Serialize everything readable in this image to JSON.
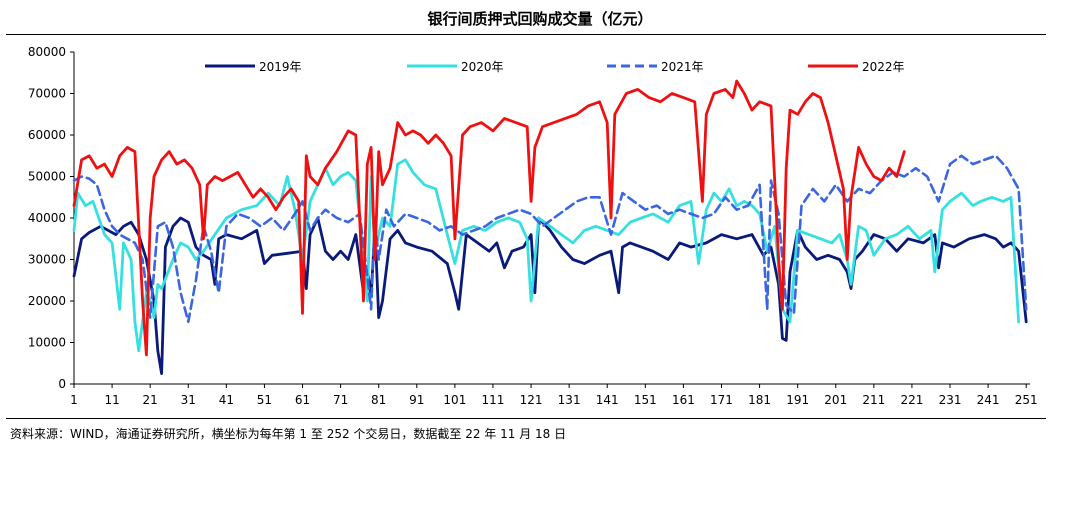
{
  "chart_data": {
    "type": "line",
    "title": "银行间质押式回购成交量（亿元）",
    "source": "资料来源：WIND，海通证券研究所，横坐标为每年第 1 至 252 个交易日，数据截至 22 年 11 月 18 日",
    "xlabel": "",
    "ylabel": "",
    "xlim": [
      1,
      252
    ],
    "ylim": [
      0,
      80000
    ],
    "x_ticks": [
      "1",
      "11",
      "21",
      "31",
      "41",
      "51",
      "61",
      "71",
      "81",
      "91",
      "101",
      "111",
      "121",
      "131",
      "141",
      "151",
      "161",
      "171",
      "181",
      "191",
      "201",
      "211",
      "221",
      "231",
      "241",
      "251"
    ],
    "y_ticks": [
      "0",
      "10000",
      "20000",
      "30000",
      "40000",
      "50000",
      "60000",
      "70000",
      "80000"
    ],
    "legend_position": "top",
    "series": [
      {
        "name": "2019年",
        "color": "#0a1a7a",
        "dash": "solid",
        "x": [
          1,
          3,
          5,
          8,
          12,
          14,
          16,
          18,
          20,
          22,
          23,
          24,
          25,
          27,
          29,
          31,
          33,
          35,
          37,
          38,
          39,
          41,
          45,
          49,
          51,
          53,
          57,
          61,
          62,
          63,
          65,
          67,
          69,
          71,
          73,
          75,
          77,
          78,
          79,
          80,
          81,
          82,
          84,
          86,
          88,
          91,
          95,
          99,
          101,
          102,
          104,
          107,
          110,
          112,
          114,
          116,
          119,
          121,
          122,
          123,
          126,
          129,
          132,
          135,
          139,
          142,
          144,
          145,
          147,
          150,
          153,
          157,
          160,
          163,
          167,
          171,
          175,
          179,
          182,
          184,
          186,
          187,
          188,
          189,
          191,
          193,
          196,
          199,
          202,
          204,
          205,
          206,
          208,
          211,
          214,
          217,
          220,
          224,
          227,
          228,
          229,
          232,
          236,
          240,
          243,
          245,
          247,
          249,
          251
        ],
        "values": [
          26000,
          35000,
          36500,
          38000,
          36000,
          38000,
          39000,
          36000,
          30000,
          20000,
          8000,
          2500,
          33000,
          38000,
          40000,
          39000,
          33000,
          31000,
          30000,
          24000,
          35000,
          36000,
          35000,
          37000,
          29000,
          31000,
          31500,
          32000,
          23000,
          36000,
          40000,
          32000,
          30000,
          32000,
          30000,
          36000,
          22000,
          28000,
          21000,
          38000,
          16000,
          20000,
          35000,
          37000,
          34000,
          33000,
          32000,
          29000,
          22000,
          18000,
          36000,
          34000,
          32000,
          34000,
          28000,
          32000,
          33000,
          36000,
          22000,
          40000,
          37000,
          33000,
          30000,
          29000,
          31000,
          32000,
          22000,
          33000,
          34000,
          33000,
          32000,
          30000,
          34000,
          33000,
          34000,
          36000,
          35000,
          36000,
          31000,
          33000,
          24000,
          11000,
          10500,
          27000,
          37000,
          33000,
          30000,
          31000,
          30000,
          27000,
          23000,
          30000,
          32000,
          36000,
          35000,
          32000,
          35000,
          34000,
          36000,
          28000,
          34000,
          33000,
          35000,
          36000,
          35000,
          33000,
          34000,
          32000,
          15000
        ]
      },
      {
        "name": "2020年",
        "color": "#36e0e0",
        "dash": "solid",
        "x": [
          1,
          2,
          4,
          6,
          9,
          11,
          13,
          14,
          16,
          17,
          18,
          20,
          21,
          22,
          23,
          24,
          27,
          29,
          31,
          33,
          35,
          38,
          41,
          45,
          49,
          52,
          55,
          57,
          59,
          61,
          63,
          65,
          67,
          69,
          71,
          73,
          75,
          77,
          78,
          79,
          80,
          82,
          84,
          86,
          88,
          90,
          93,
          96,
          99,
          101,
          103,
          106,
          109,
          112,
          115,
          118,
          120,
          121,
          123,
          126,
          129,
          132,
          135,
          138,
          141,
          144,
          147,
          150,
          153,
          157,
          160,
          163,
          165,
          167,
          169,
          171,
          173,
          175,
          177,
          179,
          181,
          183,
          185,
          187,
          189,
          191,
          194,
          197,
          200,
          202,
          204,
          205,
          207,
          209,
          211,
          214,
          217,
          220,
          223,
          226,
          227,
          229,
          231,
          234,
          237,
          239,
          242,
          245,
          247,
          249
        ],
        "values": [
          37000,
          46000,
          43000,
          44000,
          36000,
          34000,
          18000,
          34000,
          30000,
          15000,
          8000,
          22000,
          20000,
          16000,
          24000,
          23000,
          30000,
          34000,
          33000,
          30000,
          32000,
          36000,
          40000,
          42000,
          43000,
          46000,
          43000,
          50000,
          42000,
          30000,
          44000,
          48000,
          52000,
          48000,
          50000,
          51000,
          49000,
          31000,
          20000,
          50000,
          32000,
          40000,
          38000,
          53000,
          54000,
          51000,
          48000,
          47000,
          36000,
          29000,
          37000,
          38000,
          37000,
          39000,
          40000,
          39000,
          35000,
          20000,
          40000,
          38000,
          36000,
          34000,
          37000,
          38000,
          37000,
          36000,
          39000,
          40000,
          41000,
          39000,
          43000,
          44000,
          29000,
          42000,
          46000,
          44000,
          47000,
          43000,
          44000,
          43000,
          41000,
          32000,
          38000,
          18000,
          15000,
          37000,
          36000,
          35000,
          34000,
          36000,
          30000,
          24000,
          38000,
          37000,
          31000,
          35000,
          36000,
          38000,
          35000,
          37000,
          27000,
          42000,
          44000,
          46000,
          43000,
          44000,
          45000,
          44000,
          45000,
          15000
        ]
      },
      {
        "name": "2021年",
        "color": "#3a66e0",
        "dash": "dashed",
        "x": [
          1,
          3,
          5,
          7,
          9,
          11,
          13,
          15,
          17,
          19,
          21,
          23,
          25,
          27,
          29,
          31,
          33,
          35,
          37,
          39,
          41,
          44,
          47,
          50,
          53,
          56,
          59,
          61,
          63,
          65,
          67,
          70,
          73,
          76,
          78,
          79,
          80,
          81,
          83,
          85,
          88,
          91,
          94,
          97,
          100,
          103,
          106,
          109,
          112,
          115,
          118,
          121,
          124,
          127,
          130,
          133,
          136,
          139,
          142,
          145,
          148,
          151,
          154,
          157,
          160,
          163,
          166,
          169,
          172,
          175,
          178,
          181,
          183,
          184,
          186,
          188,
          190,
          192,
          195,
          198,
          201,
          204,
          207,
          210,
          213,
          216,
          219,
          222,
          225,
          228,
          231,
          234,
          237,
          240,
          243,
          246,
          249,
          251
        ],
        "values": [
          49000,
          50000,
          49500,
          48000,
          42000,
          38000,
          36000,
          35000,
          34000,
          30000,
          16000,
          38000,
          39000,
          33000,
          22000,
          15000,
          25000,
          38000,
          32000,
          22000,
          38000,
          41000,
          40000,
          38000,
          40000,
          37000,
          41000,
          44000,
          37000,
          40000,
          42000,
          40000,
          39000,
          41000,
          26000,
          18000,
          40000,
          30000,
          42000,
          38000,
          41000,
          40000,
          39000,
          37000,
          38000,
          36000,
          37000,
          38000,
          40000,
          41000,
          42000,
          41000,
          38000,
          40000,
          42000,
          44000,
          45000,
          45000,
          36000,
          46000,
          44000,
          42000,
          43000,
          41000,
          42000,
          41000,
          40000,
          41000,
          45000,
          42000,
          43000,
          48000,
          18000,
          49000,
          41000,
          19000,
          17000,
          43000,
          47000,
          44000,
          48000,
          44000,
          47000,
          46000,
          49000,
          51000,
          50000,
          52000,
          50000,
          44000,
          53000,
          55000,
          53000,
          54000,
          55000,
          52000,
          47000,
          18000
        ]
      },
      {
        "name": "2022年",
        "color": "#ee1111",
        "dash": "solid",
        "x": [
          1,
          3,
          5,
          7,
          9,
          11,
          13,
          15,
          17,
          19,
          20,
          21,
          22,
          24,
          26,
          28,
          30,
          32,
          34,
          35,
          36,
          38,
          40,
          42,
          44,
          46,
          48,
          50,
          52,
          54,
          56,
          58,
          60,
          61,
          62,
          63,
          65,
          67,
          70,
          73,
          75,
          77,
          78,
          79,
          80,
          81,
          82,
          84,
          86,
          88,
          90,
          92,
          94,
          96,
          98,
          100,
          101,
          103,
          105,
          108,
          111,
          114,
          117,
          120,
          121,
          122,
          124,
          127,
          130,
          133,
          136,
          139,
          141,
          142,
          143,
          146,
          149,
          152,
          155,
          158,
          161,
          164,
          166,
          167,
          169,
          172,
          174,
          175,
          177,
          179,
          181,
          184,
          186,
          187,
          188,
          189,
          191,
          193,
          195,
          197,
          199,
          201,
          203,
          204,
          205,
          207,
          209,
          211,
          213,
          215,
          217,
          219
        ],
        "values": [
          43000,
          54000,
          55000,
          52000,
          53000,
          50000,
          55000,
          57000,
          56000,
          20000,
          7000,
          40000,
          50000,
          54000,
          56000,
          53000,
          54000,
          52000,
          48000,
          35000,
          48000,
          50000,
          49000,
          50000,
          51000,
          48000,
          45000,
          47000,
          45000,
          42000,
          45000,
          47000,
          44000,
          17000,
          55000,
          50000,
          48000,
          52000,
          56000,
          61000,
          60000,
          20000,
          53000,
          57000,
          30000,
          56000,
          48000,
          52000,
          63000,
          60000,
          61000,
          60000,
          58000,
          60000,
          58000,
          55000,
          35000,
          60000,
          62000,
          63000,
          61000,
          64000,
          63000,
          62000,
          44000,
          57000,
          62000,
          63000,
          64000,
          65000,
          67000,
          68000,
          63000,
          40000,
          65000,
          70000,
          71000,
          69000,
          68000,
          70000,
          69000,
          68000,
          44000,
          65000,
          70000,
          71000,
          69000,
          73000,
          70000,
          66000,
          68000,
          67000,
          30000,
          18000,
          52000,
          66000,
          65000,
          68000,
          70000,
          69000,
          63000,
          55000,
          47000,
          30000,
          45000,
          57000,
          53000,
          50000,
          49000,
          52000,
          50000,
          56000
        ]
      }
    ]
  }
}
